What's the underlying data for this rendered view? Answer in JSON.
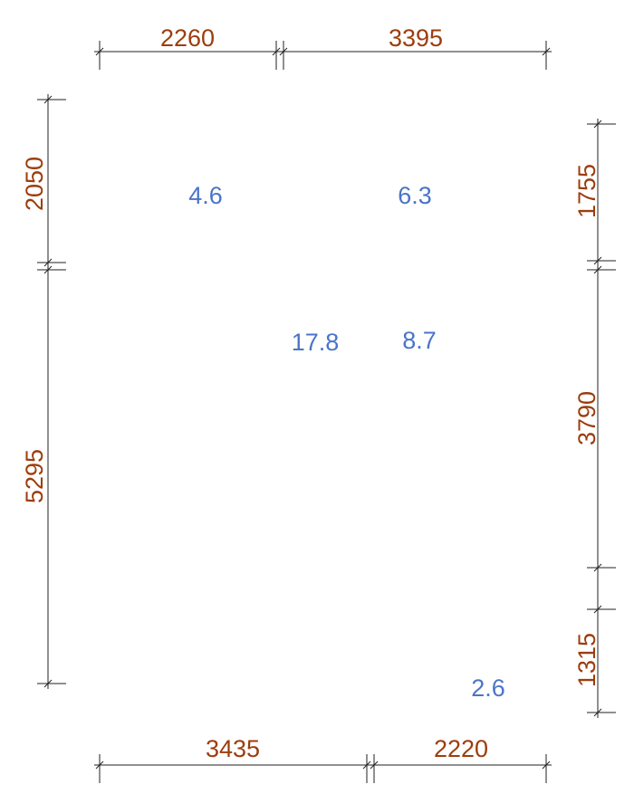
{
  "dimensions": {
    "top": [
      "2260",
      "3395"
    ],
    "bottom": [
      "3435",
      "2220"
    ],
    "left": [
      "2050",
      "5295"
    ],
    "right": [
      "1755",
      "3790",
      "1315"
    ]
  },
  "areas": [
    "4.6",
    "6.3",
    "17.8",
    "8.7",
    "2.6"
  ]
}
